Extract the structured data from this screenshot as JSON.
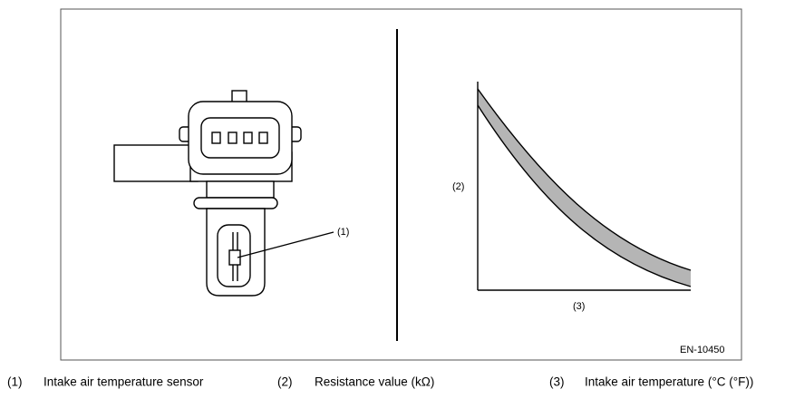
{
  "diagram": {
    "callouts": [
      "(1)",
      "(2)",
      "(3)"
    ],
    "figure_id": "EN-10450"
  },
  "legend": [
    {
      "number": "(1)",
      "label": "Intake air temperature sensor"
    },
    {
      "number": "(2)",
      "label": "Resistance value (kΩ)"
    },
    {
      "number": "(3)",
      "label": "Intake air temperature (°C (°F))"
    }
  ]
}
